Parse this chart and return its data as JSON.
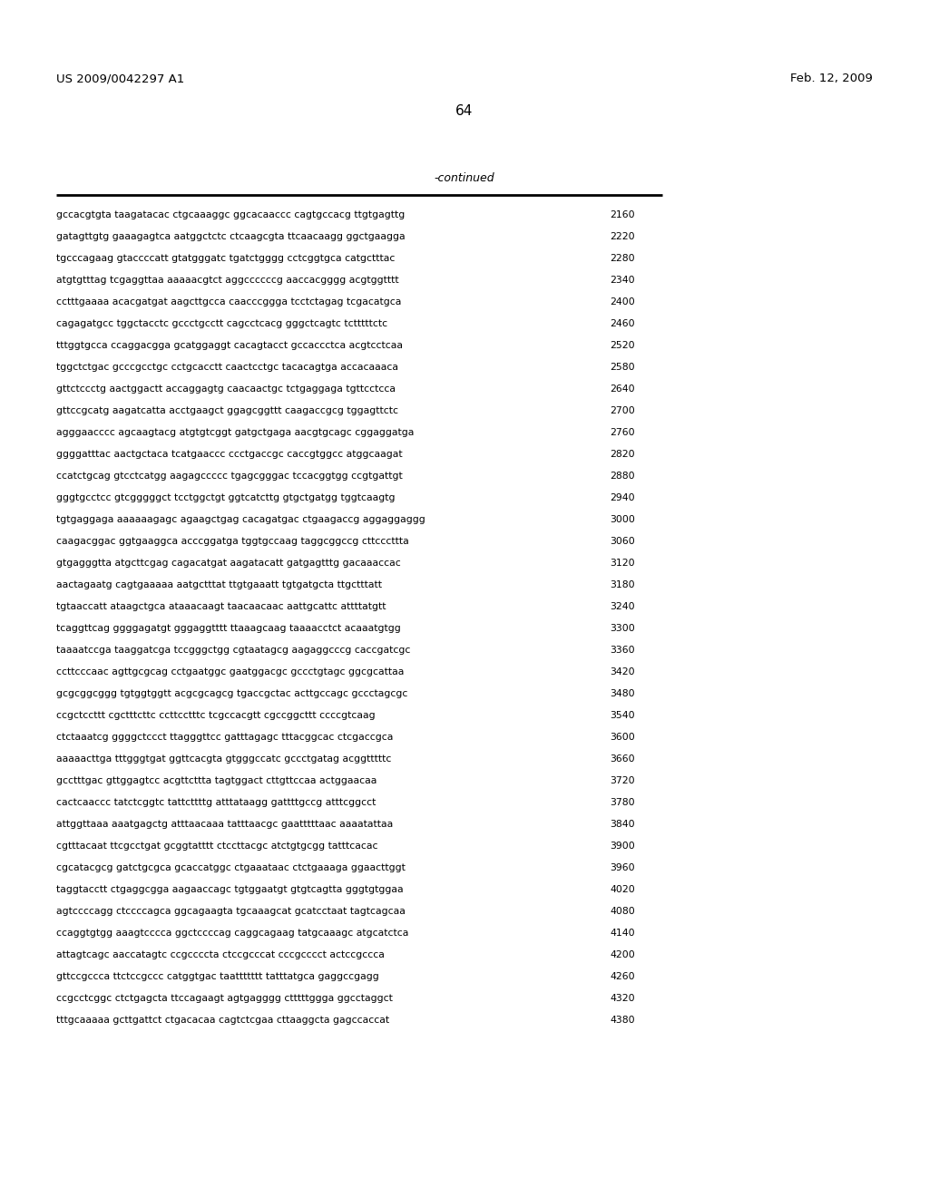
{
  "header_left": "US 2009/0042297 A1",
  "header_right": "Feb. 12, 2009",
  "page_number": "64",
  "continued_label": "-continued",
  "background_color": "#ffffff",
  "text_color": "#000000",
  "font_size_header": 9.5,
  "font_size_page": 11.0,
  "font_size_continued": 9.0,
  "font_size_sequence": 7.8,
  "sequence_lines": [
    [
      "gccacgtgta taagatacac ctgcaaaggc ggcacaaccc cagtgccacg ttgtgagttg",
      "2160"
    ],
    [
      "gatagttgtg gaaagagtca aatggctctc ctcaagcgta ttcaacaagg ggctgaagga",
      "2220"
    ],
    [
      "tgcccagaag gtaccccatt gtatgggatc tgatctgggg cctcggtgca catgctttac",
      "2280"
    ],
    [
      "atgtgtttag tcgaggttaa aaaaacgtct aggccccccg aaccacgggg acgtggtttt",
      "2340"
    ],
    [
      "cctttgaaaa acacgatgat aagcttgcca caacccggga tcctctagag tcgacatgca",
      "2400"
    ],
    [
      "cagagatgcc tggctacctc gccctgcctt cagcctcacg gggctcagtc tctttttctc",
      "2460"
    ],
    [
      "tttggtgcca ccaggacgga gcatggaggt cacagtacct gccaccctca acgtcctcaa",
      "2520"
    ],
    [
      "tggctctgac gcccgcctgc cctgcacctt caactcctgc tacacagtga accacaaaca",
      "2580"
    ],
    [
      "gttctccctg aactggactt accaggagtg caacaactgc tctgaggaga tgttcctcca",
      "2640"
    ],
    [
      "gttccgcatg aagatcatta acctgaagct ggagcggttt caagaccgcg tggagttctc",
      "2700"
    ],
    [
      "agggaacccc agcaagtacg atgtgtcggt gatgctgaga aacgtgcagc cggaggatga",
      "2760"
    ],
    [
      "ggggatttac aactgctaca tcatgaaccc ccctgaccgc caccgtggcc atggcaagat",
      "2820"
    ],
    [
      "ccatctgcag gtcctcatgg aagagccccc tgagcgggac tccacggtgg ccgtgattgt",
      "2880"
    ],
    [
      "gggtgcctcc gtcgggggct tcctggctgt ggtcatcttg gtgctgatgg tggtcaagtg",
      "2940"
    ],
    [
      "tgtgaggaga aaaaaagagc agaagctgag cacagatgac ctgaagaccg aggaggaggg",
      "3000"
    ],
    [
      "caagacggac ggtgaaggca acccggatga tggtgccaag taggcggccg cttcccttta",
      "3060"
    ],
    [
      "gtgagggtta atgcttcgag cagacatgat aagatacatt gatgagtttg gacaaaccac",
      "3120"
    ],
    [
      "aactagaatg cagtgaaaaa aatgctttat ttgtgaaatt tgtgatgcta ttgctttatt",
      "3180"
    ],
    [
      "tgtaaccatt ataagctgca ataaacaagt taacaacaac aattgcattc attttatgtt",
      "3240"
    ],
    [
      "tcaggttcag ggggagatgt gggaggtttt ttaaagcaag taaaacctct acaaatgtgg",
      "3300"
    ],
    [
      "taaaatccga taaggatcga tccgggctgg cgtaatagcg aagaggcccg caccgatcgc",
      "3360"
    ],
    [
      "ccttcccaac agttgcgcag cctgaatggc gaatggacgc gccctgtagc ggcgcattaa",
      "3420"
    ],
    [
      "gcgcggcggg tgtggtggtt acgcgcagcg tgaccgctac acttgccagc gccctagcgc",
      "3480"
    ],
    [
      "ccgctccttt cgctttcttc ccttcctttc tcgccacgtt cgccggcttt ccccgtcaag",
      "3540"
    ],
    [
      "ctctaaatcg ggggctccct ttagggttcc gatttagagc tttacggcac ctcgaccgca",
      "3600"
    ],
    [
      "aaaaacttga tttgggtgat ggttcacgta gtgggccatc gccctgatag acggtttttc",
      "3660"
    ],
    [
      "gcctttgac gttggagtcc acgttcttta tagtggact cttgttccaa actggaacaa",
      "3720"
    ],
    [
      "cactcaaccc tatctcggtc tattcttttg atttataagg gattttgccg atttcggcct",
      "3780"
    ],
    [
      "attggttaaa aaatgagctg atttaacaaa tatttaacgc gaatttttaac aaaatattaa",
      "3840"
    ],
    [
      "cgtttacaat ttcgcctgat gcggtatttt ctccttacgc atctgtgcgg tatttcacac",
      "3900"
    ],
    [
      "cgcatacgcg gatctgcgca gcaccatggc ctgaaataac ctctgaaaga ggaacttggt",
      "3960"
    ],
    [
      "taggtacctt ctgaggcgga aagaaccagc tgtggaatgt gtgtcagtta gggtgtggaa",
      "4020"
    ],
    [
      "agtccccagg ctccccagca ggcagaagta tgcaaagcat gcatcctaat tagtcagcaa",
      "4080"
    ],
    [
      "ccaggtgtgg aaagtcccca ggctccccag caggcagaag tatgcaaagc atgcatctca",
      "4140"
    ],
    [
      "attagtcagc aaccatagtc ccgccccta ctccgcccat cccgcccct actccgccca",
      "4200"
    ],
    [
      "gttccgccca ttctccgccc catggtgac taattttttt tatttatgca gaggccgagg",
      "4260"
    ],
    [
      "ccgcctcggc ctctgagcta ttccagaagt agtgagggg ctttttggga ggcctaggct",
      "4320"
    ],
    [
      "tttgcaaaaa gcttgattct ctgacacaa cagtctcgaa cttaaggcta gagccaccat",
      "4380"
    ]
  ]
}
